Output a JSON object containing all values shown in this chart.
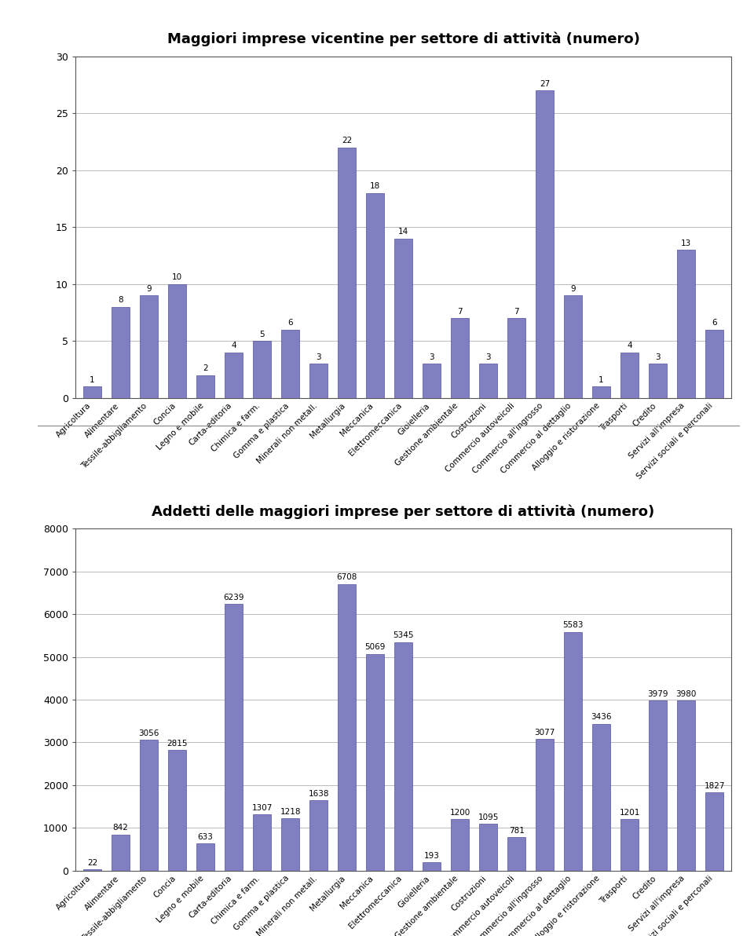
{
  "categories": [
    "Agricoltura",
    "Alimentare",
    "Tessile-abbigliamento",
    "Concia",
    "Legno e mobile",
    "Carta-editoria",
    "Chimica e farm.",
    "Gomma e plastica",
    "Minerali non metall.",
    "Metallurgia",
    "Meccanica",
    "Elettromeccanica",
    "Gioielleria",
    "Gestione ambientale",
    "Costruzioni",
    "Commercio autoveicoli",
    "Commercio all'ingrosso",
    "Commercio al dettaglio",
    "Alloggio e ristorazione",
    "Trasporti",
    "Credito",
    "Servizi all'impresa",
    "Servizi sociali e perconali"
  ],
  "values1": [
    1,
    8,
    9,
    10,
    2,
    4,
    5,
    6,
    3,
    22,
    18,
    14,
    3,
    7,
    3,
    7,
    27,
    9,
    1,
    4,
    3,
    13,
    6
  ],
  "values2": [
    22,
    842,
    3056,
    2815,
    633,
    6239,
    1307,
    1218,
    1638,
    6708,
    5069,
    5345,
    193,
    1200,
    1095,
    781,
    3077,
    5583,
    3436,
    1201,
    3979,
    3980,
    1827
  ],
  "title1": "Maggiori imprese vicentine per settore di attività (numero)",
  "title2": "Addetti delle maggiori imprese per settore di attività (numero)",
  "bar_color": "#8080c0",
  "bar_edge_color": "#5050a0",
  "ylim1": [
    0,
    30
  ],
  "ylim2": [
    0,
    8000
  ],
  "yticks1": [
    0,
    5,
    10,
    15,
    20,
    25,
    30
  ],
  "yticks2": [
    0,
    1000,
    2000,
    3000,
    4000,
    5000,
    6000,
    7000,
    8000
  ],
  "grid_color": "#bbbbbb",
  "background_color": "#ffffff",
  "title_fontsize": 13,
  "label_fontsize": 7.5,
  "value_fontsize": 7.5,
  "tick_fontsize": 9
}
